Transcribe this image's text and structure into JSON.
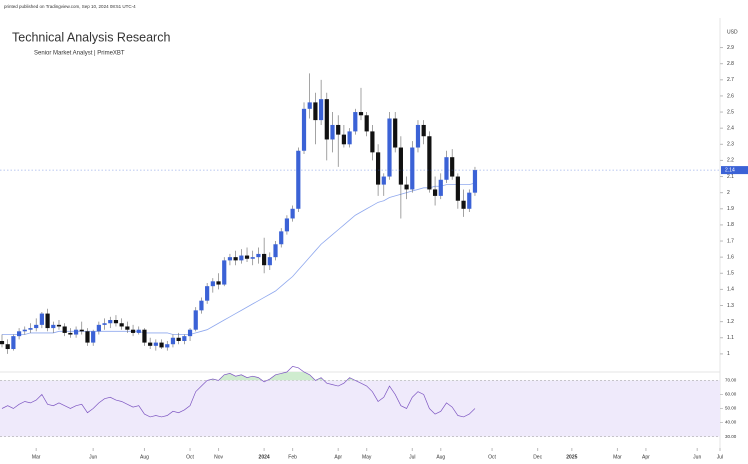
{
  "chart_data": [
    {
      "type": "candlestick",
      "source_note": "printed published on Tradingview.com, Sep 10, 2024 08:51 UTC-4",
      "title": "Technical Analysis Research",
      "subtitle": "Senior Market Analyst | PrimeXBT",
      "unit": "USD",
      "up_color": "#3b62d6",
      "down_color": "#111111",
      "open": [
        1.08,
        1.06,
        1.03,
        1.11,
        1.14,
        1.15,
        1.16,
        1.18,
        1.25,
        1.16,
        1.18,
        1.17,
        1.13,
        1.12,
        1.15,
        1.14,
        1.07,
        1.14,
        1.18,
        1.19,
        1.21,
        1.19,
        1.17,
        1.15,
        1.13,
        1.15,
        1.07,
        1.05,
        1.07,
        1.04,
        1.06,
        1.1,
        1.08,
        1.11,
        1.15,
        1.27,
        1.33,
        1.42,
        1.45,
        1.43,
        1.58,
        1.6,
        1.58,
        1.61,
        1.59,
        1.6,
        1.62,
        1.55,
        1.6,
        1.68,
        1.76,
        1.84,
        1.9,
        2.26,
        2.52,
        2.56,
        2.45,
        2.58,
        2.33,
        2.42,
        2.36,
        2.3,
        2.38,
        2.5,
        2.48,
        2.38,
        2.25,
        2.05,
        2.1,
        2.46,
        2.28,
        2.05,
        2.02,
        2.28,
        2.42,
        2.35,
        2.02,
        1.98,
        2.08,
        2.22,
        2.1,
        1.95,
        1.9,
        2.0
      ],
      "high": [
        1.12,
        1.09,
        1.12,
        1.16,
        1.17,
        1.19,
        1.22,
        1.26,
        1.28,
        1.2,
        1.21,
        1.19,
        1.16,
        1.17,
        1.2,
        1.16,
        1.15,
        1.2,
        1.22,
        1.23,
        1.24,
        1.22,
        1.2,
        1.18,
        1.17,
        1.16,
        1.1,
        1.09,
        1.09,
        1.08,
        1.12,
        1.13,
        1.12,
        1.16,
        1.29,
        1.35,
        1.44,
        1.47,
        1.5,
        1.6,
        1.62,
        1.64,
        1.65,
        1.66,
        1.64,
        1.66,
        1.72,
        1.63,
        1.7,
        1.78,
        1.86,
        1.92,
        2.28,
        2.56,
        2.74,
        2.62,
        2.7,
        2.62,
        2.5,
        2.48,
        2.42,
        2.4,
        2.52,
        2.65,
        2.5,
        2.42,
        2.3,
        2.12,
        2.5,
        2.5,
        2.35,
        2.1,
        2.32,
        2.45,
        2.45,
        2.38,
        2.1,
        2.12,
        2.26,
        2.27,
        2.12,
        2.02,
        2.02,
        2.16
      ],
      "low": [
        1.04,
        1.0,
        1.02,
        1.09,
        1.12,
        1.13,
        1.14,
        1.16,
        1.14,
        1.13,
        1.15,
        1.11,
        1.1,
        1.1,
        1.12,
        1.05,
        1.05,
        1.12,
        1.15,
        1.16,
        1.17,
        1.15,
        1.13,
        1.11,
        1.12,
        1.05,
        1.03,
        1.02,
        1.03,
        1.02,
        1.04,
        1.06,
        1.06,
        1.08,
        1.14,
        1.25,
        1.31,
        1.38,
        1.4,
        1.42,
        1.55,
        1.55,
        1.56,
        1.57,
        1.55,
        1.56,
        1.5,
        1.52,
        1.58,
        1.66,
        1.74,
        1.82,
        1.88,
        2.24,
        2.46,
        2.3,
        2.42,
        2.2,
        2.25,
        2.16,
        2.28,
        2.28,
        2.36,
        2.45,
        2.35,
        2.2,
        1.98,
        1.98,
        2.08,
        2.25,
        1.84,
        1.96,
        2.0,
        2.25,
        2.3,
        2.0,
        1.92,
        1.96,
        2.06,
        2.08,
        1.9,
        1.85,
        1.88,
        1.98
      ],
      "close": [
        1.06,
        1.03,
        1.11,
        1.14,
        1.15,
        1.16,
        1.18,
        1.25,
        1.16,
        1.18,
        1.17,
        1.13,
        1.12,
        1.15,
        1.14,
        1.07,
        1.14,
        1.18,
        1.19,
        1.21,
        1.19,
        1.17,
        1.15,
        1.13,
        1.15,
        1.07,
        1.05,
        1.07,
        1.04,
        1.06,
        1.1,
        1.08,
        1.11,
        1.15,
        1.27,
        1.33,
        1.42,
        1.45,
        1.43,
        1.58,
        1.6,
        1.58,
        1.61,
        1.59,
        1.6,
        1.62,
        1.55,
        1.6,
        1.68,
        1.76,
        1.84,
        1.9,
        2.26,
        2.52,
        2.56,
        2.45,
        2.58,
        2.33,
        2.42,
        2.36,
        2.3,
        2.38,
        2.5,
        2.48,
        2.38,
        2.25,
        2.05,
        2.1,
        2.46,
        2.28,
        2.05,
        2.02,
        2.28,
        2.42,
        2.35,
        2.02,
        1.98,
        2.08,
        2.22,
        2.1,
        1.95,
        1.9,
        2.0,
        2.14
      ],
      "series": [
        {
          "color": "#8fa8ee",
          "values": [
            1.12,
            1.12,
            1.12,
            1.12,
            1.12,
            1.13,
            1.13,
            1.13,
            1.13,
            1.13,
            1.14,
            1.14,
            1.14,
            1.14,
            1.14,
            1.14,
            1.14,
            1.14,
            1.14,
            1.14,
            1.14,
            1.14,
            1.14,
            1.14,
            1.14,
            1.13,
            1.13,
            1.13,
            1.13,
            1.13,
            1.12,
            1.12,
            1.12,
            1.12,
            1.13,
            1.14,
            1.15,
            1.17,
            1.19,
            1.21,
            1.23,
            1.25,
            1.27,
            1.29,
            1.31,
            1.33,
            1.35,
            1.37,
            1.39,
            1.42,
            1.45,
            1.48,
            1.52,
            1.56,
            1.6,
            1.64,
            1.68,
            1.71,
            1.74,
            1.77,
            1.8,
            1.83,
            1.86,
            1.88,
            1.9,
            1.92,
            1.94,
            1.95,
            1.97,
            1.98,
            1.99,
            2.0,
            2.01,
            2.02,
            2.03,
            2.03,
            2.04,
            2.04,
            2.05,
            2.05,
            2.05,
            2.05,
            2.05,
            2.06
          ]
        }
      ],
      "xlim": [
        -0.35,
        126
      ],
      "ylim": [
        0.9,
        3.04
      ],
      "yticks": [
        1,
        1.1,
        1.2,
        1.3,
        1.4,
        1.5,
        1.6,
        1.7,
        1.8,
        1.9,
        2,
        2.1,
        2.2,
        2.3,
        2.4,
        2.5,
        2.6,
        2.7,
        2.8,
        2.9
      ],
      "xticks": [
        {
          "value": 6,
          "label": "Mar"
        },
        {
          "value": 16,
          "label": "Jun"
        },
        {
          "value": 25,
          "label": "Aug"
        },
        {
          "value": 33,
          "label": "Oct"
        },
        {
          "value": 38,
          "label": "Nov"
        },
        {
          "value": 46,
          "label": "2024"
        },
        {
          "value": 51,
          "label": "Feb"
        },
        {
          "value": 59,
          "label": "Apr"
        },
        {
          "value": 64,
          "label": "May"
        },
        {
          "value": 72,
          "label": "Jul"
        },
        {
          "value": 77,
          "label": "Aug"
        },
        {
          "value": 86,
          "label": "Oct"
        },
        {
          "value": 94,
          "label": "Dec"
        },
        {
          "value": 100,
          "label": "2025"
        },
        {
          "value": 108,
          "label": "Mar"
        },
        {
          "value": 113,
          "label": "Apr"
        },
        {
          "value": 122,
          "label": "Jun"
        },
        {
          "value": 126,
          "label": "Jul"
        }
      ]
    },
    {
      "type": "line",
      "band_color": "#efeafb",
      "highlight_color": "#cfeccf",
      "series": [
        {
          "color": "#7e57c2",
          "values": [
            50,
            52,
            50,
            53,
            55,
            54,
            56,
            60,
            53,
            52,
            54,
            52,
            50,
            52,
            53,
            47,
            50,
            54,
            57,
            58,
            56,
            55,
            53,
            51,
            52,
            46,
            44,
            45,
            44,
            45,
            48,
            47,
            49,
            52,
            62,
            66,
            70,
            71,
            70,
            74,
            75,
            73,
            74,
            72,
            73,
            72,
            69,
            71,
            74,
            75,
            76,
            80,
            79,
            76,
            74,
            70,
            72,
            68,
            67,
            66,
            68,
            72,
            70,
            68,
            66,
            62,
            55,
            58,
            66,
            60,
            52,
            50,
            58,
            62,
            60,
            50,
            46,
            48,
            54,
            51,
            45,
            44,
            46,
            50
          ]
        }
      ],
      "ylim": [
        24,
        76
      ],
      "yticks": [
        {
          "value": 30,
          "label": "30.00"
        },
        {
          "value": 40,
          "label": "40.00"
        },
        {
          "value": 50,
          "label": "50.00"
        },
        {
          "value": 60,
          "label": "60.00"
        },
        {
          "value": 70,
          "label": "70.00"
        }
      ]
    }
  ]
}
